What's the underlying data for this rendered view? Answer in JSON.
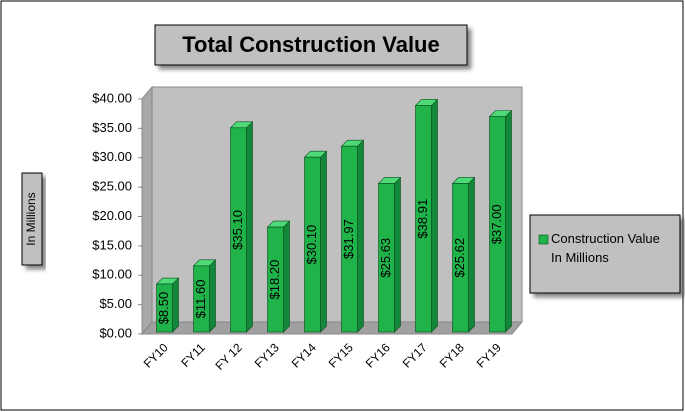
{
  "chart_data": {
    "type": "bar3d",
    "title": "Total Construction Value",
    "y_axis_label": "In Millions",
    "categories": [
      "FY10",
      "FY11",
      "FY 12",
      "FY13",
      "FY14",
      "FY15",
      "FY16",
      "FY17",
      "FY18",
      "FY19"
    ],
    "series": [
      {
        "name": "Construction Value In Millions",
        "color": "#1fb34a",
        "values": [
          8.5,
          11.6,
          35.1,
          18.2,
          30.1,
          31.97,
          25.63,
          38.91,
          25.62,
          37.0
        ],
        "value_labels": [
          "$8.50",
          "$11.60",
          "$35.10",
          "$18.20",
          "$30.10",
          "$31.97",
          "$25.63",
          "$38.91",
          "$25.62",
          "$37.00"
        ]
      }
    ],
    "ylim": [
      0,
      40
    ],
    "yticks": [
      {
        "value": 0,
        "label": "$0.00"
      },
      {
        "value": 5,
        "label": "$5.00"
      },
      {
        "value": 10,
        "label": "$10.00"
      },
      {
        "value": 15,
        "label": "$15.00"
      },
      {
        "value": 20,
        "label": "$20.00"
      },
      {
        "value": 25,
        "label": "$25.00"
      },
      {
        "value": 30,
        "label": "$30.00"
      },
      {
        "value": 35,
        "label": "$35.00"
      },
      {
        "value": 40,
        "label": "$40.00"
      }
    ],
    "grid": false,
    "legend": "right"
  }
}
